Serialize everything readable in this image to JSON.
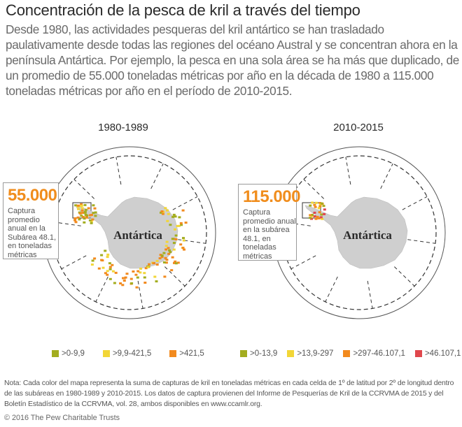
{
  "title": "Concentración de la pesca de kril a través del tiempo",
  "intro": "Desde 1980, las actividades pesqueras del kril antártico se han trasladado paulativamente desde todas las regiones del océano Austral y se concentran ahora en la península Antártica. Por ejemplo, la pesca en una sola área se ha más que duplicado, de un promedio de 55.000 toneladas métricas por año en la década de 1980 a 115.000 toneladas métricas por año en el período de 2010-2015.",
  "maps": [
    {
      "period": "1980-1989",
      "continent_label": "Antártica",
      "callout_value": "55.000",
      "callout_text": "Captura promedio anual en la Subárea 48.1, en toneladas métricas",
      "legend": [
        {
          "label": ">0-9,9",
          "color": "#a3ad1f"
        },
        {
          "label": ">9,9-421,5",
          "color": "#f2d637"
        },
        {
          "label": ">421,5",
          "color": "#f28a1e"
        }
      ]
    },
    {
      "period": "2010-2015",
      "continent_label": "Antártica",
      "callout_value": "115.000",
      "callout_text": "Captura promedio anual en la subárea 48.1, en toneladas métricas",
      "legend": [
        {
          "label": ">0-13,9",
          "color": "#a3ad1f"
        },
        {
          "label": ">13,9-297",
          "color": "#f2d637"
        },
        {
          "label": ">297-46.107,1",
          "color": "#f28a1e"
        },
        {
          "label": ">46.107,1",
          "color": "#e0474c"
        }
      ]
    }
  ],
  "note": "Nota: Cada color del mapa representa la suma de capturas de kril en toneladas métricas en cada celda de 1º de latitud por 2º de longitud dentro de las subáreas en 1980-1989 y 2010-2015. Los datos de captura provienen del Informe de Pesquerías de Kril de la CCRVMA de 2015 y del Boletín Estadístico de la CCRVMA, vol. 28, ambos disponibles en www.ccamlr.org.",
  "copyright": "© 2016 The Pew Charitable Trusts"
}
